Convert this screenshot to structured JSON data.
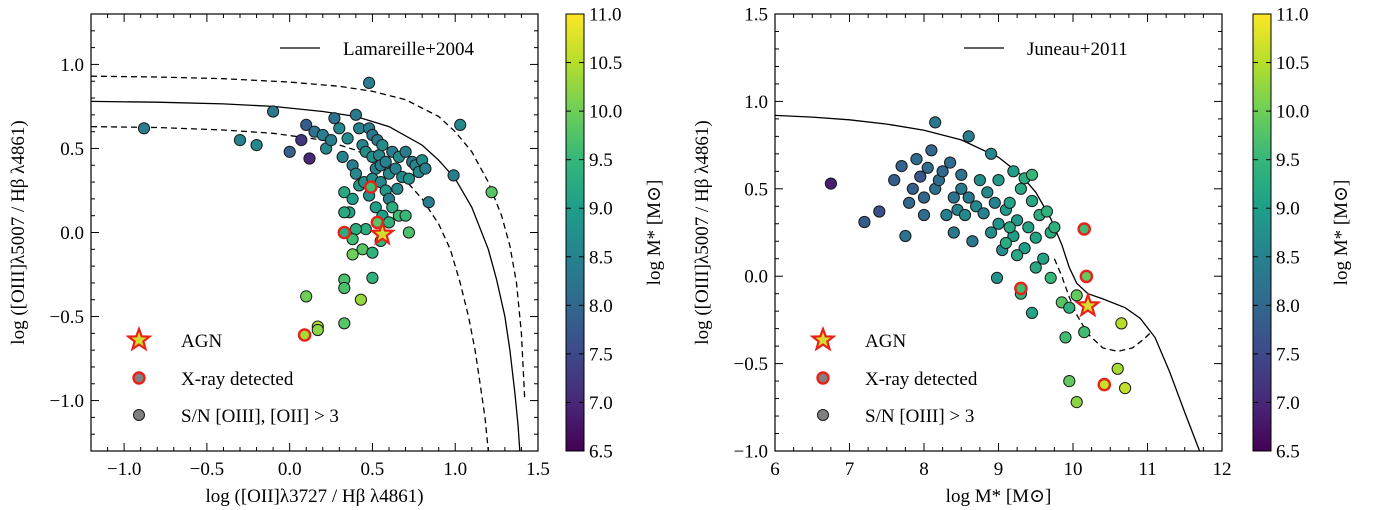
{
  "colormap": {
    "name": "viridis",
    "stops": [
      "#440154",
      "#482878",
      "#3e4989",
      "#31688e",
      "#26828e",
      "#1f9e89",
      "#35b779",
      "#6ece58",
      "#b5de2b",
      "#fde725"
    ],
    "vmin": 6.5,
    "vmax": 11.0,
    "ticks": [
      "11.0",
      "10.5",
      "10.0",
      "9.5",
      "9.0",
      "8.5",
      "8.0",
      "7.5",
      "7.0",
      "6.5"
    ],
    "label": "log M* [M⊙]"
  },
  "colors": {
    "xray_edge": "#e8221a",
    "agn_star_edge": "#e8221a",
    "agn_star_fill": "#d6dd2c",
    "legend_marker_fill": "#808080"
  },
  "legend": {
    "agn": "AGN",
    "xray": "X-ray detected",
    "left_sn": "S/N [OIII], [OII] > 3",
    "right_sn": "S/N [OIII] > 3"
  },
  "chart_data": [
    {
      "type": "scatter",
      "xlabel": "log ([OII]λ3727 / Hβ λ4861)",
      "ylabel": "log ([OIII]λ5007 / Hβ λ4861)",
      "xlim": [
        -1.2,
        1.5
      ],
      "ylim": [
        -1.3,
        1.3
      ],
      "xticks": [
        "−1.0",
        "−0.5",
        "0.0",
        "0.5",
        "1.0",
        "1.5"
      ],
      "yticks": [
        "−1.0",
        "−0.5",
        "0.0",
        "0.5",
        "1.0"
      ],
      "line_label": "Lamareille+2004",
      "legend_placement": "top-right",
      "points": [
        [
          -0.88,
          0.62,
          8.4
        ],
        [
          -0.3,
          0.55,
          8.5
        ],
        [
          -0.2,
          0.52,
          8.6
        ],
        [
          -0.1,
          0.72,
          8.3
        ],
        [
          0.0,
          0.48,
          7.9
        ],
        [
          0.07,
          0.55,
          7.2
        ],
        [
          0.1,
          0.64,
          7.8
        ],
        [
          0.12,
          0.44,
          7.0
        ],
        [
          0.15,
          0.6,
          8.2
        ],
        [
          0.2,
          0.58,
          8.4
        ],
        [
          0.22,
          0.5,
          8.6
        ],
        [
          0.25,
          0.55,
          8.4
        ],
        [
          0.27,
          0.68,
          8.2
        ],
        [
          0.3,
          0.62,
          8.6
        ],
        [
          0.32,
          0.45,
          8.5
        ],
        [
          0.35,
          0.56,
          8.7
        ],
        [
          0.38,
          0.4,
          8.4
        ],
        [
          0.4,
          0.7,
          8.3
        ],
        [
          0.42,
          0.62,
          8.5
        ],
        [
          0.44,
          0.52,
          8.6
        ],
        [
          0.46,
          0.48,
          8.7
        ],
        [
          0.48,
          0.62,
          8.4
        ],
        [
          0.48,
          0.89,
          8.4
        ],
        [
          0.5,
          0.58,
          8.3
        ],
        [
          0.5,
          0.45,
          8.7
        ],
        [
          0.52,
          0.38,
          8.5
        ],
        [
          0.53,
          0.55,
          8.3
        ],
        [
          0.54,
          0.46,
          8.6
        ],
        [
          0.55,
          0.4,
          8.4
        ],
        [
          0.56,
          0.52,
          8.7
        ],
        [
          0.58,
          0.42,
          8.5
        ],
        [
          0.6,
          0.35,
          8.6
        ],
        [
          0.62,
          0.48,
          8.4
        ],
        [
          0.64,
          0.38,
          8.5
        ],
        [
          0.66,
          0.45,
          8.7
        ],
        [
          0.68,
          0.33,
          8.6
        ],
        [
          0.7,
          0.48,
          8.4
        ],
        [
          0.72,
          0.32,
          8.8
        ],
        [
          0.74,
          0.42,
          8.3
        ],
        [
          0.76,
          0.4,
          8.6
        ],
        [
          0.78,
          0.36,
          8.6
        ],
        [
          0.8,
          0.43,
          8.7
        ],
        [
          0.82,
          0.38,
          8.5
        ],
        [
          0.84,
          0.18,
          8.4
        ],
        [
          0.99,
          0.34,
          8.4
        ],
        [
          1.03,
          0.64,
          8.6
        ],
        [
          0.4,
          0.35,
          8.6
        ],
        [
          0.42,
          0.28,
          8.9
        ],
        [
          0.45,
          0.3,
          8.8
        ],
        [
          0.5,
          0.32,
          8.7
        ],
        [
          0.55,
          0.3,
          8.6
        ],
        [
          0.58,
          0.25,
          8.9
        ],
        [
          0.6,
          0.2,
          8.5
        ],
        [
          0.65,
          0.26,
          8.6
        ],
        [
          0.48,
          0.22,
          8.8
        ],
        [
          0.52,
          0.15,
          9.0
        ],
        [
          0.33,
          0.24,
          9.2
        ],
        [
          0.38,
          0.2,
          9.0
        ],
        [
          0.36,
          0.12,
          9.1
        ],
        [
          0.33,
          0.12,
          9.2
        ],
        [
          0.62,
          0.15,
          9.3
        ],
        [
          0.66,
          0.1,
          9.6
        ],
        [
          0.7,
          0.1,
          9.5
        ],
        [
          0.56,
          0.1,
          9.0
        ],
        [
          0.6,
          0.06,
          9.4
        ],
        [
          0.55,
          -0.05,
          9.5
        ],
        [
          0.46,
          0.02,
          9.3
        ],
        [
          0.72,
          0.0,
          9.7
        ],
        [
          0.4,
          0.02,
          9.3
        ],
        [
          0.38,
          -0.04,
          9.6
        ],
        [
          0.44,
          -0.1,
          9.8
        ],
        [
          0.38,
          -0.13,
          10.0
        ],
        [
          0.5,
          -0.12,
          9.4
        ],
        [
          0.5,
          -0.27,
          9.4
        ],
        [
          0.33,
          -0.28,
          9.7
        ],
        [
          0.33,
          -0.33,
          9.7
        ],
        [
          0.43,
          -0.4,
          10.3
        ],
        [
          0.1,
          -0.38,
          10.0
        ],
        [
          0.33,
          -0.54,
          9.8
        ],
        [
          0.17,
          -0.56,
          10.5
        ],
        [
          0.17,
          -0.58,
          10.2
        ],
        [
          1.22,
          0.24,
          9.8
        ]
      ],
      "xray": [
        [
          0.33,
          0.0,
          9.3
        ],
        [
          0.49,
          0.27,
          9.6
        ],
        [
          0.53,
          0.06,
          9.8
        ],
        [
          0.09,
          -0.61,
          10.4
        ]
      ],
      "agn": [
        [
          0.56,
          -0.01,
          10.2
        ]
      ],
      "curves": [
        {
          "style": "solid",
          "x": [
            -1.2,
            -0.8,
            -0.4,
            -0.1,
            0.2,
            0.4,
            0.6,
            0.8,
            0.9,
            1.0,
            1.1,
            1.2,
            1.25,
            1.3,
            1.33,
            1.36,
            1.38,
            1.39
          ],
          "y": [
            0.78,
            0.775,
            0.765,
            0.75,
            0.72,
            0.69,
            0.63,
            0.52,
            0.43,
            0.32,
            0.15,
            -0.1,
            -0.28,
            -0.5,
            -0.7,
            -0.95,
            -1.15,
            -1.3
          ]
        },
        {
          "style": "dashed",
          "x": [
            -1.2,
            -0.8,
            -0.4,
            0.0,
            0.3,
            0.5,
            0.7,
            0.9,
            1.0,
            1.1,
            1.2,
            1.28,
            1.33,
            1.37,
            1.4,
            1.42
          ],
          "y": [
            0.93,
            0.925,
            0.915,
            0.895,
            0.87,
            0.84,
            0.79,
            0.69,
            0.6,
            0.48,
            0.3,
            0.1,
            -0.08,
            -0.3,
            -0.6,
            -1.0
          ]
        },
        {
          "style": "dashed",
          "x": [
            -1.2,
            -0.8,
            -0.4,
            -0.1,
            0.2,
            0.4,
            0.6,
            0.7,
            0.8,
            0.9,
            0.97,
            1.03,
            1.08,
            1.12,
            1.15,
            1.18,
            1.2
          ],
          "y": [
            0.63,
            0.625,
            0.61,
            0.59,
            0.55,
            0.49,
            0.39,
            0.31,
            0.2,
            0.05,
            -0.1,
            -0.3,
            -0.5,
            -0.7,
            -0.9,
            -1.1,
            -1.3
          ]
        }
      ]
    },
    {
      "type": "scatter",
      "xlabel": "log M* [M⊙]",
      "ylabel": "log ([OIII]λ5007 / Hβ λ4861)",
      "xlim": [
        6,
        12
      ],
      "ylim": [
        -1.0,
        1.5
      ],
      "xticks": [
        "6",
        "7",
        "8",
        "9",
        "10",
        "11",
        "12"
      ],
      "yticks": [
        "−1.0",
        "−0.5",
        "0.0",
        "0.5",
        "1.0",
        "1.5"
      ],
      "line_label": "Juneau+2011",
      "legend_placement": "top-right",
      "points": [
        [
          6.75,
          0.53,
          6.9
        ],
        [
          7.2,
          0.31,
          7.8
        ],
        [
          7.4,
          0.37,
          7.6
        ],
        [
          7.6,
          0.55,
          7.8
        ],
        [
          7.7,
          0.63,
          7.9
        ],
        [
          7.75,
          0.23,
          8.2
        ],
        [
          7.8,
          0.42,
          8.0
        ],
        [
          7.85,
          0.5,
          7.9
        ],
        [
          7.9,
          0.67,
          8.1
        ],
        [
          7.95,
          0.57,
          7.7
        ],
        [
          8.0,
          0.35,
          8.1
        ],
        [
          8.0,
          0.45,
          8.0
        ],
        [
          8.05,
          0.62,
          8.1
        ],
        [
          8.1,
          0.72,
          8.0
        ],
        [
          8.15,
          0.5,
          8.2
        ],
        [
          8.15,
          0.88,
          8.3
        ],
        [
          8.2,
          0.55,
          8.1
        ],
        [
          8.25,
          0.6,
          8.0
        ],
        [
          8.3,
          0.35,
          8.4
        ],
        [
          8.35,
          0.65,
          8.1
        ],
        [
          8.4,
          0.45,
          8.2
        ],
        [
          8.4,
          0.25,
          8.3
        ],
        [
          8.45,
          0.38,
          8.5
        ],
        [
          8.5,
          0.5,
          8.3
        ],
        [
          8.5,
          0.58,
          8.2
        ],
        [
          8.55,
          0.35,
          8.6
        ],
        [
          8.6,
          0.45,
          8.3
        ],
        [
          8.6,
          0.8,
          8.4
        ],
        [
          8.65,
          0.2,
          8.3
        ],
        [
          8.7,
          0.4,
          8.6
        ],
        [
          8.75,
          0.55,
          8.7
        ],
        [
          8.8,
          0.36,
          8.5
        ],
        [
          8.85,
          0.48,
          8.6
        ],
        [
          8.9,
          0.25,
          8.7
        ],
        [
          8.9,
          0.7,
          8.6
        ],
        [
          8.95,
          0.42,
          8.5
        ],
        [
          9.0,
          0.3,
          8.8
        ],
        [
          9.0,
          0.55,
          8.9
        ],
        [
          9.05,
          0.15,
          8.7
        ],
        [
          9.1,
          0.38,
          8.9
        ],
        [
          9.15,
          0.42,
          9.1
        ],
        [
          9.2,
          0.6,
          9.0
        ],
        [
          9.2,
          0.23,
          9.0
        ],
        [
          9.25,
          0.32,
          8.9
        ],
        [
          9.3,
          0.5,
          9.2
        ],
        [
          9.35,
          0.16,
          9.0
        ],
        [
          9.4,
          0.28,
          9.1
        ],
        [
          9.45,
          0.43,
          9.2
        ],
        [
          9.5,
          0.22,
          9.1
        ],
        [
          9.5,
          0.05,
          9.2
        ],
        [
          9.55,
          0.35,
          9.3
        ],
        [
          9.6,
          0.1,
          9.1
        ],
        [
          9.65,
          0.37,
          9.4
        ],
        [
          9.7,
          0.25,
          9.3
        ],
        [
          9.7,
          -0.01,
          9.5
        ],
        [
          9.75,
          0.28,
          9.4
        ],
        [
          9.35,
          0.56,
          9.3
        ],
        [
          9.45,
          0.58,
          9.5
        ],
        [
          9.25,
          0.12,
          9.2
        ],
        [
          9.1,
          0.19,
          9.3
        ],
        [
          8.98,
          -0.01,
          8.8
        ],
        [
          9.3,
          -0.1,
          9.4
        ],
        [
          9.45,
          -0.21,
          9.1
        ],
        [
          9.15,
          0.28,
          9.2
        ],
        [
          9.85,
          -0.15,
          9.8
        ],
        [
          9.95,
          -0.18,
          9.4
        ],
        [
          10.05,
          -0.11,
          9.9
        ],
        [
          10.15,
          -0.32,
          9.6
        ],
        [
          9.9,
          -0.35,
          9.6
        ],
        [
          9.95,
          -0.6,
          9.9
        ],
        [
          10.05,
          -0.72,
          10.2
        ],
        [
          10.6,
          -0.53,
          10.4
        ],
        [
          10.65,
          -0.27,
          10.5
        ],
        [
          10.7,
          -0.64,
          10.6
        ]
      ],
      "xray": [
        [
          9.3,
          -0.07,
          9.6
        ],
        [
          10.15,
          0.27,
          9.6
        ],
        [
          10.18,
          -0.001,
          9.9
        ],
        [
          10.42,
          -0.62,
          10.6
        ]
      ],
      "agn": [
        [
          10.2,
          -0.17,
          10.2
        ]
      ],
      "curves": [
        {
          "style": "solid",
          "x": [
            6.0,
            6.5,
            7.0,
            7.5,
            8.0,
            8.5,
            9.0,
            9.3,
            9.5,
            9.7,
            9.85,
            9.95,
            10.05,
            10.2,
            10.4,
            10.7,
            10.9,
            11.1,
            11.3,
            11.5,
            11.7
          ],
          "y": [
            0.92,
            0.91,
            0.895,
            0.87,
            0.835,
            0.78,
            0.68,
            0.58,
            0.48,
            0.33,
            0.18,
            0.05,
            -0.04,
            -0.1,
            -0.13,
            -0.18,
            -0.24,
            -0.35,
            -0.55,
            -0.78,
            -1.0
          ]
        },
        {
          "style": "dashed",
          "x": [
            9.75,
            9.85,
            9.95,
            10.05,
            10.2,
            10.4,
            10.6,
            10.8,
            10.95,
            11.05
          ],
          "y": [
            0.1,
            0.0,
            -0.12,
            -0.22,
            -0.33,
            -0.41,
            -0.43,
            -0.41,
            -0.36,
            -0.32
          ]
        }
      ]
    }
  ]
}
